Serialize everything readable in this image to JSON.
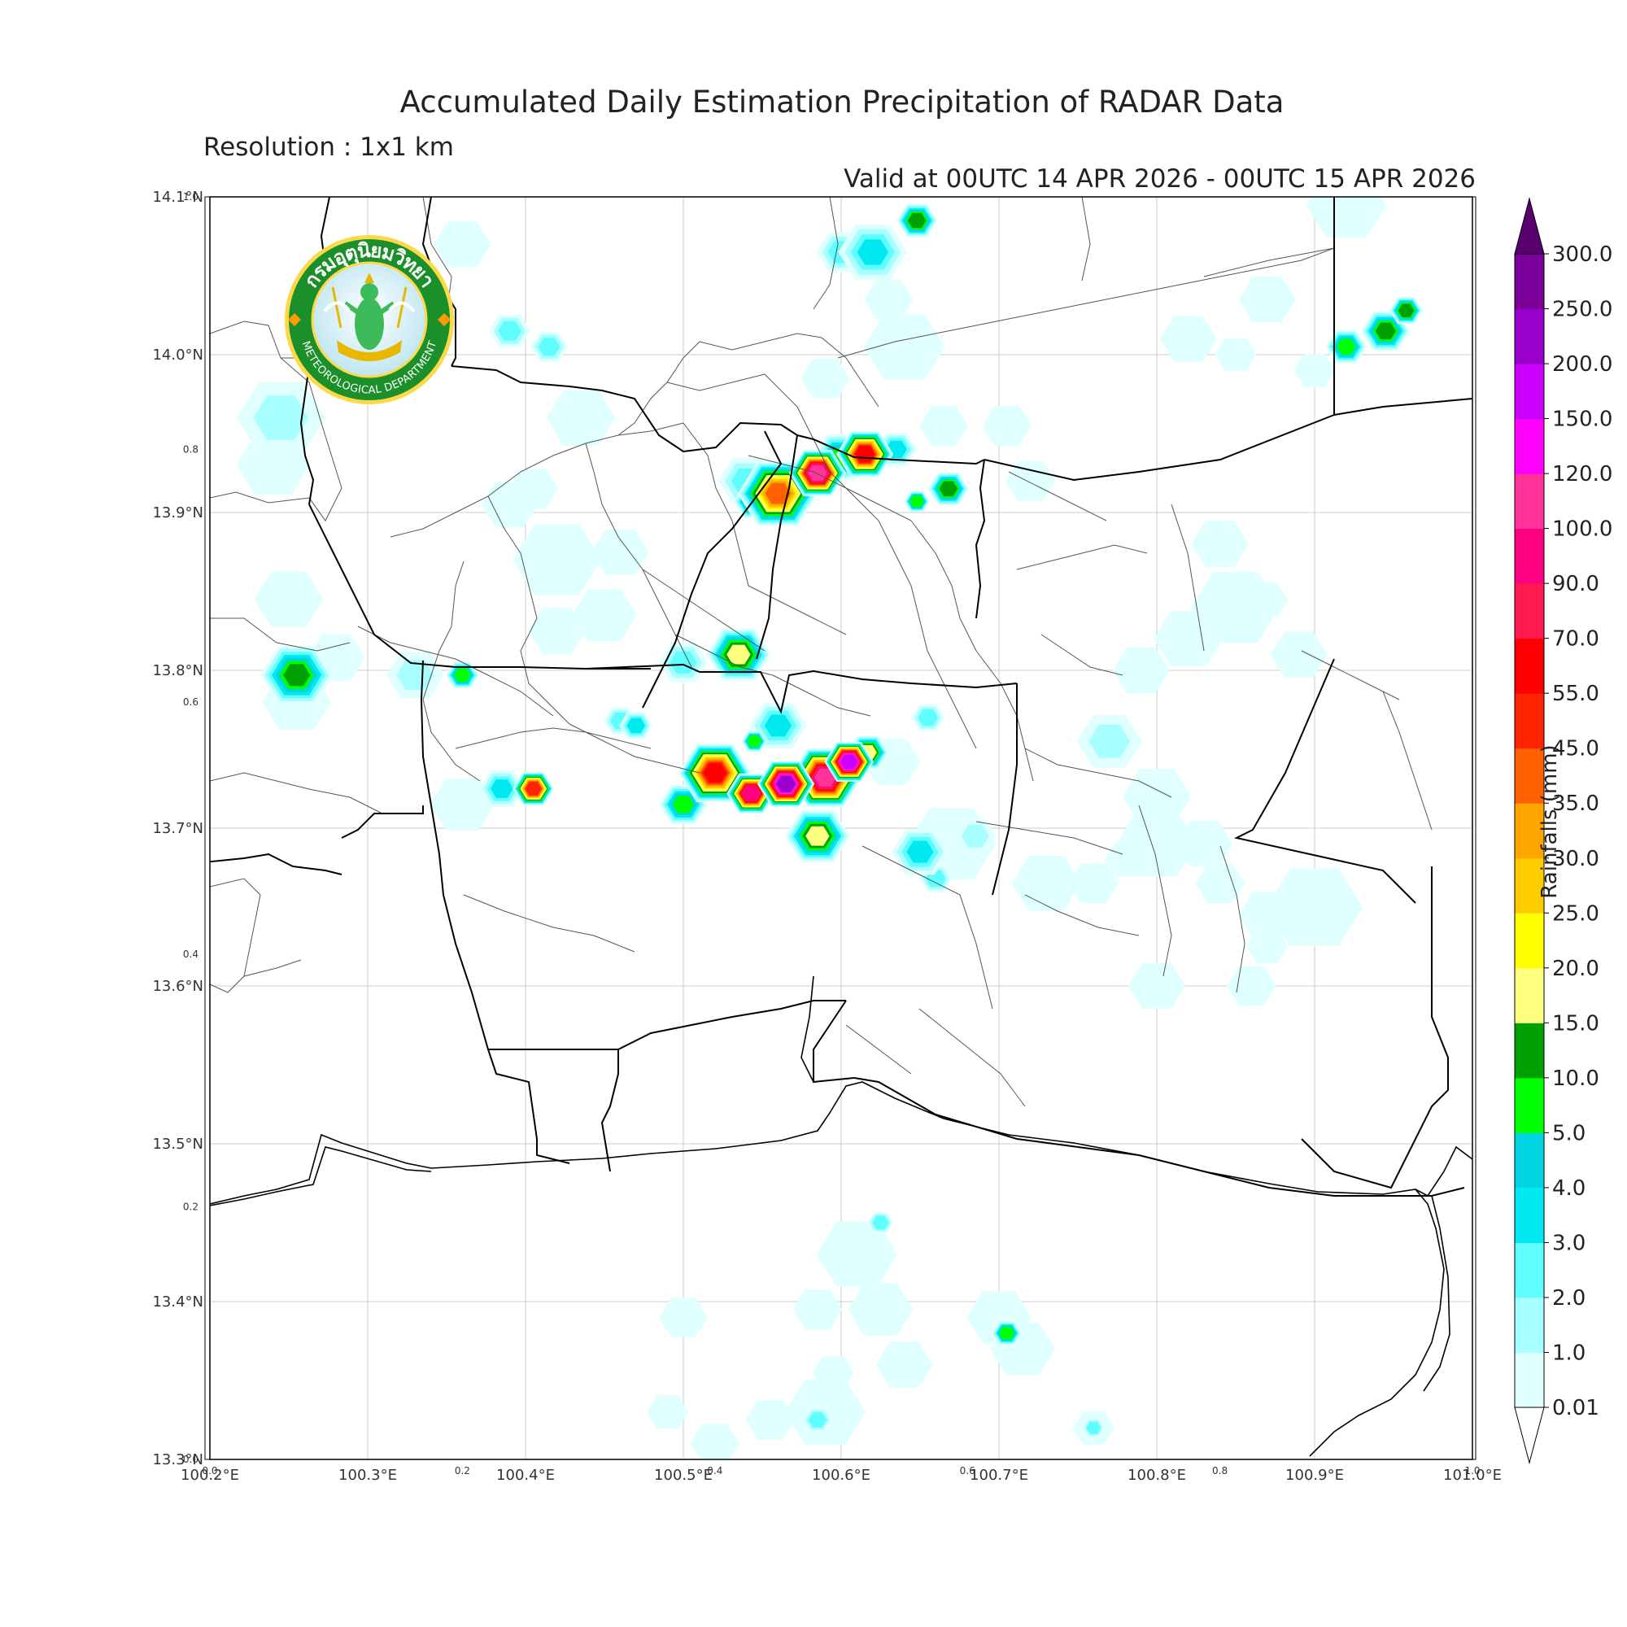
{
  "title": "Accumulated Daily Estimation Precipitation of RADAR Data",
  "subtitle": "Resolution : 1x1 km",
  "valid_text": "Valid at 00UTC 14 APR 2026 - 00UTC 15 APR 2026",
  "logo": {
    "icon": "thai-meteorological-department-seal",
    "thai_text": "กรมอุตุนิยมวิทยา",
    "english_text": "METEOROLOGICAL DEPARTMENT",
    "ring_color": "#1a8f2a"
  },
  "map": {
    "lon_range": [
      100.2,
      101.0
    ],
    "lat_range": [
      13.3,
      14.1
    ],
    "lon_ticks": [
      {
        "value": 100.2,
        "label": "100.2°E"
      },
      {
        "value": 100.3,
        "label": "100.3°E"
      },
      {
        "value": 100.4,
        "label": "100.4°E"
      },
      {
        "value": 100.5,
        "label": "100.5°E"
      },
      {
        "value": 100.6,
        "label": "100.6°E"
      },
      {
        "value": 100.7,
        "label": "100.7°E"
      },
      {
        "value": 100.8,
        "label": "100.8°E"
      },
      {
        "value": 100.9,
        "label": "100.9°E"
      },
      {
        "value": 101.0,
        "label": "101.0°E"
      }
    ],
    "lat_ticks": [
      {
        "value": 13.3,
        "label": "13.3°N"
      },
      {
        "value": 13.4,
        "label": "13.4°N"
      },
      {
        "value": 13.5,
        "label": "13.5°N"
      },
      {
        "value": 13.6,
        "label": "13.6°N"
      },
      {
        "value": 13.7,
        "label": "13.7°N"
      },
      {
        "value": 13.8,
        "label": "13.8°N"
      },
      {
        "value": 13.9,
        "label": "13.9°N"
      },
      {
        "value": 14.0,
        "label": "14.0°N"
      },
      {
        "value": 14.1,
        "label": "14.1°N"
      }
    ],
    "inner_x_ticks": [
      {
        "value": 0.0,
        "label": "0.0"
      },
      {
        "value": 0.2,
        "label": "0.2"
      },
      {
        "value": 0.4,
        "label": "0.4"
      },
      {
        "value": 0.6,
        "label": "0.6"
      },
      {
        "value": 0.8,
        "label": "0.8"
      },
      {
        "value": 1.0,
        "label": "1.0"
      }
    ],
    "inner_y_ticks": [
      {
        "value": 0.0,
        "label": "0.0"
      },
      {
        "value": 0.2,
        "label": "0.2"
      },
      {
        "value": 0.4,
        "label": "0.4"
      },
      {
        "value": 0.6,
        "label": "0.6"
      },
      {
        "value": 0.8,
        "label": "0.8"
      },
      {
        "value": 1.0,
        "label": "1.0"
      }
    ],
    "rain_cells": [
      {
        "lon": 100.36,
        "lat": 14.07,
        "mm": 0.5,
        "r": 0.012
      },
      {
        "lon": 100.39,
        "lat": 14.015,
        "mm": 2.5,
        "r": 0.008
      },
      {
        "lon": 100.415,
        "lat": 14.005,
        "mm": 2.5,
        "r": 0.007
      },
      {
        "lon": 100.435,
        "lat": 13.96,
        "mm": 0.6,
        "r": 0.015
      },
      {
        "lon": 100.24,
        "lat": 13.93,
        "mm": 0.5,
        "r": 0.016
      },
      {
        "lon": 100.245,
        "lat": 13.96,
        "mm": 1.5,
        "r": 0.02
      },
      {
        "lon": 100.39,
        "lat": 13.905,
        "mm": 0.6,
        "r": 0.012
      },
      {
        "lon": 100.405,
        "lat": 13.915,
        "mm": 0.5,
        "r": 0.01
      },
      {
        "lon": 100.42,
        "lat": 13.87,
        "mm": 0.5,
        "r": 0.02
      },
      {
        "lon": 100.46,
        "lat": 13.875,
        "mm": 0.5,
        "r": 0.012
      },
      {
        "lon": 100.45,
        "lat": 13.835,
        "mm": 0.6,
        "r": 0.014
      },
      {
        "lon": 100.42,
        "lat": 13.825,
        "mm": 0.5,
        "r": 0.012
      },
      {
        "lon": 100.25,
        "lat": 13.845,
        "mm": 0.6,
        "r": 0.015
      },
      {
        "lon": 100.28,
        "lat": 13.808,
        "mm": 0.5,
        "r": 0.012
      },
      {
        "lon": 100.255,
        "lat": 13.78,
        "mm": 0.5,
        "r": 0.015
      },
      {
        "lon": 100.255,
        "lat": 13.797,
        "mm": 12.0,
        "r": 0.016
      },
      {
        "lon": 100.33,
        "lat": 13.797,
        "mm": 1.5,
        "r": 0.012
      },
      {
        "lon": 100.36,
        "lat": 13.797,
        "mm": 7.0,
        "r": 0.006
      },
      {
        "lon": 100.47,
        "lat": 13.765,
        "mm": 3.0,
        "r": 0.006
      },
      {
        "lon": 100.385,
        "lat": 13.725,
        "mm": 3.0,
        "r": 0.009
      },
      {
        "lon": 100.36,
        "lat": 13.715,
        "mm": 0.8,
        "r": 0.014
      },
      {
        "lon": 100.405,
        "lat": 13.725,
        "mm": 45.0,
        "r": 0.008
      },
      {
        "lon": 100.59,
        "lat": 13.985,
        "mm": 0.6,
        "r": 0.01
      },
      {
        "lon": 100.64,
        "lat": 14.005,
        "mm": 0.6,
        "r": 0.018
      },
      {
        "lon": 100.62,
        "lat": 14.065,
        "mm": 3.0,
        "r": 0.015
      },
      {
        "lon": 100.6,
        "lat": 14.065,
        "mm": 2.0,
        "r": 0.01
      },
      {
        "lon": 100.648,
        "lat": 14.085,
        "mm": 12.0,
        "r": 0.008
      },
      {
        "lon": 100.6,
        "lat": 13.935,
        "mm": 6.0,
        "r": 0.012
      },
      {
        "lon": 100.665,
        "lat": 13.955,
        "mm": 0.8,
        "r": 0.01
      },
      {
        "lon": 100.54,
        "lat": 13.92,
        "mm": 2.0,
        "r": 0.012
      },
      {
        "lon": 100.56,
        "lat": 13.912,
        "mm": 35.0,
        "r": 0.018
      },
      {
        "lon": 100.585,
        "lat": 13.925,
        "mm": 110.0,
        "r": 0.012
      },
      {
        "lon": 100.615,
        "lat": 13.937,
        "mm": 60.0,
        "r": 0.012
      },
      {
        "lon": 100.545,
        "lat": 13.907,
        "mm": 12.0,
        "r": 0.008
      },
      {
        "lon": 100.635,
        "lat": 13.94,
        "mm": 3.0,
        "r": 0.008
      },
      {
        "lon": 100.668,
        "lat": 13.915,
        "mm": 12.0,
        "r": 0.008
      },
      {
        "lon": 100.648,
        "lat": 13.907,
        "mm": 5.0,
        "r": 0.004
      },
      {
        "lon": 100.72,
        "lat": 13.92,
        "mm": 0.5,
        "r": 0.01
      },
      {
        "lon": 100.705,
        "lat": 13.955,
        "mm": 0.6,
        "r": 0.01
      },
      {
        "lon": 100.535,
        "lat": 13.81,
        "mm": 15.0,
        "r": 0.014
      },
      {
        "lon": 100.5,
        "lat": 13.805,
        "mm": 2.5,
        "r": 0.01
      },
      {
        "lon": 100.46,
        "lat": 13.768,
        "mm": 2.0,
        "r": 0.006
      },
      {
        "lon": 100.56,
        "lat": 13.765,
        "mm": 3.0,
        "r": 0.012
      },
      {
        "lon": 100.545,
        "lat": 13.755,
        "mm": 6.0,
        "r": 0.004
      },
      {
        "lon": 100.52,
        "lat": 13.735,
        "mm": 60.0,
        "r": 0.016
      },
      {
        "lon": 100.543,
        "lat": 13.722,
        "mm": 90.0,
        "r": 0.01
      },
      {
        "lon": 100.565,
        "lat": 13.728,
        "mm": 200.0,
        "r": 0.012
      },
      {
        "lon": 100.59,
        "lat": 13.732,
        "mm": 110.0,
        "r": 0.016
      },
      {
        "lon": 100.605,
        "lat": 13.742,
        "mm": 180.0,
        "r": 0.01
      },
      {
        "lon": 100.617,
        "lat": 13.748,
        "mm": 15.0,
        "r": 0.008
      },
      {
        "lon": 100.5,
        "lat": 13.715,
        "mm": 8.0,
        "r": 0.01
      },
      {
        "lon": 100.585,
        "lat": 13.695,
        "mm": 18.0,
        "r": 0.014
      },
      {
        "lon": 100.65,
        "lat": 13.685,
        "mm": 3.0,
        "r": 0.012
      },
      {
        "lon": 100.67,
        "lat": 13.69,
        "mm": 0.5,
        "r": 0.02
      },
      {
        "lon": 100.685,
        "lat": 13.695,
        "mm": 1.5,
        "r": 0.008
      },
      {
        "lon": 100.66,
        "lat": 13.668,
        "mm": 2.0,
        "r": 0.006
      },
      {
        "lon": 100.655,
        "lat": 13.77,
        "mm": 2.0,
        "r": 0.006
      },
      {
        "lon": 100.632,
        "lat": 13.742,
        "mm": 0.6,
        "r": 0.012
      },
      {
        "lon": 100.63,
        "lat": 14.035,
        "mm": 0.5,
        "r": 0.01
      },
      {
        "lon": 100.92,
        "lat": 14.005,
        "mm": 8.0,
        "r": 0.008
      },
      {
        "lon": 100.945,
        "lat": 14.015,
        "mm": 10.0,
        "r": 0.01
      },
      {
        "lon": 100.958,
        "lat": 14.028,
        "mm": 12.0,
        "r": 0.006
      },
      {
        "lon": 100.87,
        "lat": 14.035,
        "mm": 0.6,
        "r": 0.012
      },
      {
        "lon": 100.92,
        "lat": 14.095,
        "mm": 0.6,
        "r": 0.018
      },
      {
        "lon": 100.9,
        "lat": 13.99,
        "mm": 0.6,
        "r": 0.008
      },
      {
        "lon": 100.85,
        "lat": 14.0,
        "mm": 0.5,
        "r": 0.008
      },
      {
        "lon": 100.82,
        "lat": 14.01,
        "mm": 0.5,
        "r": 0.012
      },
      {
        "lon": 100.84,
        "lat": 13.88,
        "mm": 0.5,
        "r": 0.012
      },
      {
        "lon": 100.85,
        "lat": 13.84,
        "mm": 0.5,
        "r": 0.02
      },
      {
        "lon": 100.82,
        "lat": 13.82,
        "mm": 0.5,
        "r": 0.015
      },
      {
        "lon": 100.87,
        "lat": 13.845,
        "mm": 0.5,
        "r": 0.008
      },
      {
        "lon": 100.89,
        "lat": 13.81,
        "mm": 0.5,
        "r": 0.012
      },
      {
        "lon": 100.79,
        "lat": 13.8,
        "mm": 0.5,
        "r": 0.012
      },
      {
        "lon": 100.8,
        "lat": 13.72,
        "mm": 0.5,
        "r": 0.015
      },
      {
        "lon": 100.77,
        "lat": 13.755,
        "mm": 1.0,
        "r": 0.014
      },
      {
        "lon": 100.8,
        "lat": 13.69,
        "mm": 0.5,
        "r": 0.018
      },
      {
        "lon": 100.83,
        "lat": 13.69,
        "mm": 0.5,
        "r": 0.012
      },
      {
        "lon": 100.84,
        "lat": 13.665,
        "mm": 0.5,
        "r": 0.01
      },
      {
        "lon": 100.87,
        "lat": 13.645,
        "mm": 0.5,
        "r": 0.012
      },
      {
        "lon": 100.86,
        "lat": 13.6,
        "mm": 0.5,
        "r": 0.01
      },
      {
        "lon": 100.87,
        "lat": 13.625,
        "mm": 0.5,
        "r": 0.008
      },
      {
        "lon": 100.8,
        "lat": 13.6,
        "mm": 0.5,
        "r": 0.012
      },
      {
        "lon": 100.9,
        "lat": 13.65,
        "mm": 0.5,
        "r": 0.022
      },
      {
        "lon": 100.76,
        "lat": 13.665,
        "mm": 0.5,
        "r": 0.01
      },
      {
        "lon": 100.78,
        "lat": 13.68,
        "mm": 0.5,
        "r": 0.008
      },
      {
        "lon": 100.73,
        "lat": 13.665,
        "mm": 0.5,
        "r": 0.015
      },
      {
        "lon": 100.61,
        "lat": 13.43,
        "mm": 0.5,
        "r": 0.018
      },
      {
        "lon": 100.625,
        "lat": 13.395,
        "mm": 0.5,
        "r": 0.014
      },
      {
        "lon": 100.5,
        "lat": 13.39,
        "mm": 0.5,
        "r": 0.01
      },
      {
        "lon": 100.585,
        "lat": 13.395,
        "mm": 0.5,
        "r": 0.01
      },
      {
        "lon": 100.595,
        "lat": 13.355,
        "mm": 0.5,
        "r": 0.008
      },
      {
        "lon": 100.625,
        "lat": 13.45,
        "mm": 2.0,
        "r": 0.004
      },
      {
        "lon": 100.64,
        "lat": 13.36,
        "mm": 0.6,
        "r": 0.012
      },
      {
        "lon": 100.7,
        "lat": 13.39,
        "mm": 0.6,
        "r": 0.014
      },
      {
        "lon": 100.705,
        "lat": 13.38,
        "mm": 5.0,
        "r": 0.005
      },
      {
        "lon": 100.715,
        "lat": 13.37,
        "mm": 0.5,
        "r": 0.014
      },
      {
        "lon": 100.59,
        "lat": 13.33,
        "mm": 0.5,
        "r": 0.018
      },
      {
        "lon": 100.585,
        "lat": 13.325,
        "mm": 2.0,
        "r": 0.005
      },
      {
        "lon": 100.555,
        "lat": 13.325,
        "mm": 0.5,
        "r": 0.01
      },
      {
        "lon": 100.52,
        "lat": 13.31,
        "mm": 0.5,
        "r": 0.01
      },
      {
        "lon": 100.49,
        "lat": 13.33,
        "mm": 0.5,
        "r": 0.008
      },
      {
        "lon": 100.76,
        "lat": 13.32,
        "mm": 0.5,
        "r": 0.008
      },
      {
        "lon": 100.76,
        "lat": 13.32,
        "mm": 2.0,
        "r": 0.003
      }
    ]
  },
  "colorbar": {
    "title": "Rainfalls (mm)",
    "levels": [
      "0.01",
      "1.0",
      "2.0",
      "3.0",
      "4.0",
      "5.0",
      "10.0",
      "15.0",
      "20.0",
      "25.0",
      "30.0",
      "35.0",
      "45.0",
      "55.0",
      "70.0",
      "90.0",
      "100.0",
      "120.0",
      "150.0",
      "200.0",
      "250.0",
      "300.0"
    ],
    "colors": [
      "#e0ffff",
      "#a8ffff",
      "#5ffdfd",
      "#00e8f0",
      "#00d4e0",
      "#00ff00",
      "#00a000",
      "#ffff80",
      "#ffff00",
      "#ffcc00",
      "#ffa500",
      "#ff6000",
      "#ff2400",
      "#ff0000",
      "#ff1a4e",
      "#ff0080",
      "#ff3399",
      "#ff00ff",
      "#cc00ff",
      "#9900cc",
      "#7a0099"
    ],
    "over_color": "#5a006e"
  }
}
